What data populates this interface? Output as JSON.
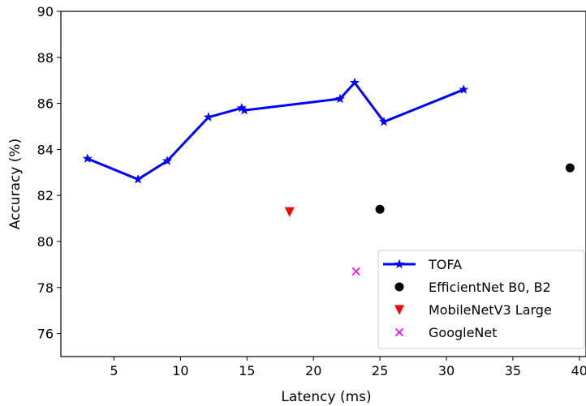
{
  "chart_data": {
    "type": "line",
    "title": "",
    "xlabel": "Latency (ms)",
    "ylabel": "Accuracy (%)",
    "xlim": [
      1,
      40.5
    ],
    "ylim": [
      75,
      90
    ],
    "xticks": [
      5,
      10,
      15,
      20,
      25,
      30,
      35,
      40
    ],
    "yticks": [
      76,
      78,
      80,
      82,
      84,
      86,
      88,
      90
    ],
    "grid": false,
    "legend_position": "bottom-right",
    "series": [
      {
        "name": "TOFA",
        "kind": "line",
        "marker": "star",
        "color": "#0000ff",
        "x": [
          3.0,
          6.8,
          9.0,
          12.1,
          14.6,
          14.8,
          22.0,
          23.1,
          25.3,
          31.3
        ],
        "y": [
          83.6,
          82.7,
          83.5,
          85.4,
          85.8,
          85.7,
          86.2,
          86.9,
          85.2,
          86.6
        ]
      },
      {
        "name": "EfficientNet B0, B2",
        "kind": "scatter",
        "marker": "circle",
        "color": "#000000",
        "x": [
          25.0,
          39.3
        ],
        "y": [
          81.4,
          83.2
        ]
      },
      {
        "name": "MobileNetV3 Large",
        "kind": "scatter",
        "marker": "triangle-down",
        "color": "#ff0000",
        "x": [
          18.2
        ],
        "y": [
          81.3
        ]
      },
      {
        "name": "GoogleNet",
        "kind": "scatter",
        "marker": "x",
        "color": "#ff00ff",
        "x": [
          23.2
        ],
        "y": [
          78.7
        ]
      }
    ]
  }
}
